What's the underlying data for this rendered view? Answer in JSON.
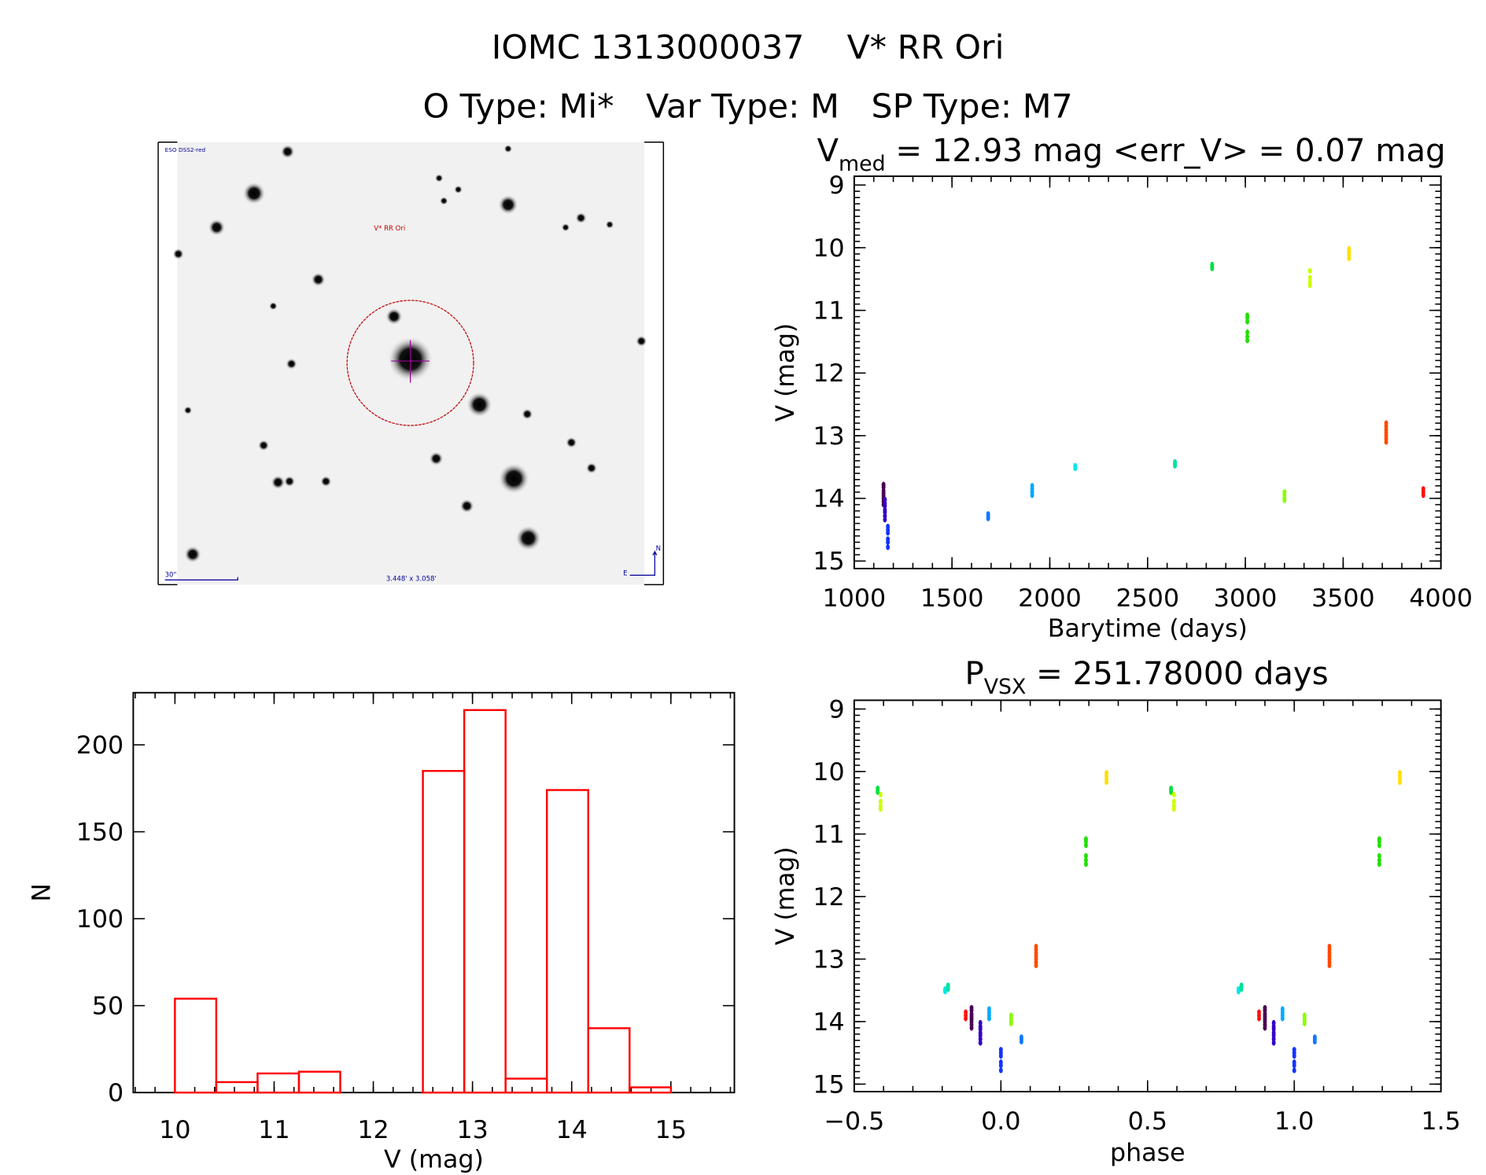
{
  "header": {
    "title_line1": "IOMC 1313000037    V* RR Ori",
    "title_line2": "O Type: Mi*   Var Type: M   SP Type: M7"
  },
  "finder_image": {
    "survey_label": "ESO DSS2-red",
    "target_label": "V* RR Ori",
    "scale_label": "30\"",
    "fov_label": "3.448' x 3.058'",
    "north_label": "N",
    "east_label": "E",
    "circle_color": "#c00000",
    "annotation_color": "#000099"
  },
  "chart_data": [
    {
      "type": "scatter",
      "name": "light-curve",
      "title_main": "V",
      "title_sub": "med",
      "title_rest": " = 12.93 mag <err_V> = 0.07 mag",
      "xlabel": "Barytime (days)",
      "ylabel": "V (mag)",
      "xlim": [
        1000,
        4000
      ],
      "ylim": [
        15.12,
        8.86
      ],
      "xticks": [
        "1000",
        "1500",
        "2000",
        "2500",
        "3000",
        "3500",
        "4000"
      ],
      "yticks": [
        "9",
        "10",
        "11",
        "12",
        "13",
        "14",
        "15"
      ],
      "groups": [
        {
          "t": 1150,
          "phase": -0.1,
          "color": "#4a0055",
          "mags": [
            13.78,
            13.82,
            13.88,
            13.92,
            13.96,
            14.0,
            14.05,
            14.1
          ]
        },
        {
          "t": 1157,
          "phase": -0.07,
          "color": "#3300c8",
          "mags": [
            14.02,
            14.08,
            14.12,
            14.18,
            14.22,
            14.28,
            14.34
          ]
        },
        {
          "t": 1172,
          "phase": 0.0,
          "color": "#1133ff",
          "mags": [
            14.45,
            14.5,
            14.55,
            14.65,
            14.7,
            14.78
          ]
        },
        {
          "t": 1685,
          "phase": 0.07,
          "color": "#1177ff",
          "mags": [
            14.25,
            14.28,
            14.32
          ]
        },
        {
          "t": 1910,
          "phase": -0.04,
          "color": "#00aaff",
          "mags": [
            13.8,
            13.85,
            13.9,
            13.95
          ]
        },
        {
          "t": 2130,
          "phase": -0.19,
          "color": "#00e8e8",
          "mags": [
            13.48,
            13.5,
            13.52
          ]
        },
        {
          "t": 2640,
          "phase": -0.18,
          "color": "#00e0a0",
          "mags": [
            13.42,
            13.45,
            13.48
          ]
        },
        {
          "t": 2830,
          "phase": -0.42,
          "color": "#00e040",
          "mags": [
            10.27,
            10.3,
            10.33
          ]
        },
        {
          "t": 3010,
          "phase": 0.29,
          "color": "#22e000",
          "mags": [
            11.08,
            11.12,
            11.18,
            11.35,
            11.42,
            11.48
          ]
        },
        {
          "t": 3200,
          "phase": 0.035,
          "color": "#88ff00",
          "mags": [
            13.9,
            13.95,
            14.0,
            14.03
          ]
        },
        {
          "t": 3330,
          "phase": -0.41,
          "color": "#ccff00",
          "mags": [
            10.37,
            10.48,
            10.55,
            10.6
          ]
        },
        {
          "t": 3530,
          "phase": 0.36,
          "color": "#ffe000",
          "mags": [
            10.02,
            10.07,
            10.12,
            10.17
          ]
        },
        {
          "t": 3720,
          "phase": 0.12,
          "color": "#ff4a00",
          "mags": [
            12.8,
            12.85,
            12.9,
            12.95,
            13.0,
            13.05,
            13.1
          ]
        },
        {
          "t": 3910,
          "phase": -0.12,
          "color": "#ff1010",
          "mags": [
            13.85,
            13.9,
            13.95
          ]
        }
      ]
    },
    {
      "type": "scatter",
      "name": "phased-light-curve",
      "title_main": "P",
      "title_sub": "VSX",
      "title_rest": " = 251.78000 days",
      "xlabel": "phase",
      "ylabel": "V (mag)",
      "xlim": [
        -0.5,
        1.5
      ],
      "ylim": [
        15.12,
        8.86
      ],
      "xticks": [
        "−0.5",
        "0.0",
        "0.5",
        "1.0",
        "1.5"
      ],
      "yticks": [
        "9",
        "10",
        "11",
        "12",
        "13",
        "14",
        "15"
      ],
      "period_days": 251.78
    },
    {
      "type": "bar",
      "name": "histogram",
      "xlabel": "V (mag)",
      "ylabel": "N",
      "xlim": [
        9.58,
        15.64
      ],
      "ylim": [
        0,
        230
      ],
      "xticks": [
        "10",
        "11",
        "12",
        "13",
        "14",
        "15"
      ],
      "yticks": [
        "0",
        "50",
        "100",
        "150",
        "200"
      ],
      "bin_start": 10,
      "bin_width": 0.41667,
      "values": [
        54,
        6,
        11,
        12,
        0,
        0,
        185,
        220,
        8,
        174,
        37,
        3
      ],
      "color": "#ff0000"
    }
  ]
}
